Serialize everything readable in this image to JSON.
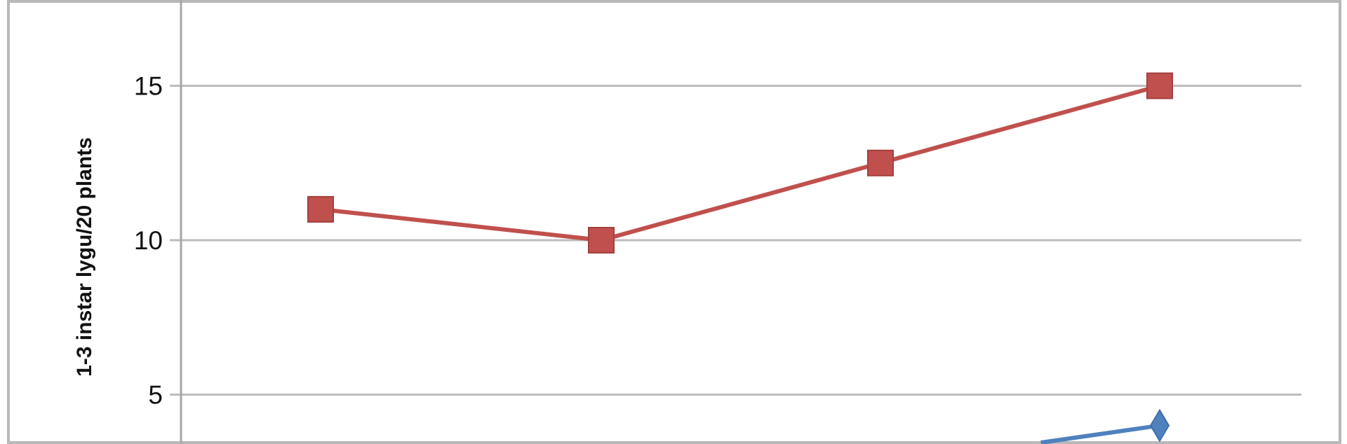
{
  "chart_data": {
    "type": "line",
    "title": "",
    "xlabel": "",
    "ylabel": "1-3 instar lygu/20 plants",
    "yticks": [
      "5",
      "10",
      "15"
    ],
    "ylim_visible": [
      3.4,
      17.8
    ],
    "grid": "horizontal",
    "x": [
      1,
      2,
      3,
      4
    ],
    "series": [
      {
        "color": "#C0504D",
        "marker": "square",
        "values": [
          11,
          10,
          12.5,
          15
        ]
      },
      {
        "color": "#4F81BD",
        "marker": "diamond",
        "values": [
          null,
          null,
          2.7,
          4
        ]
      }
    ]
  }
}
